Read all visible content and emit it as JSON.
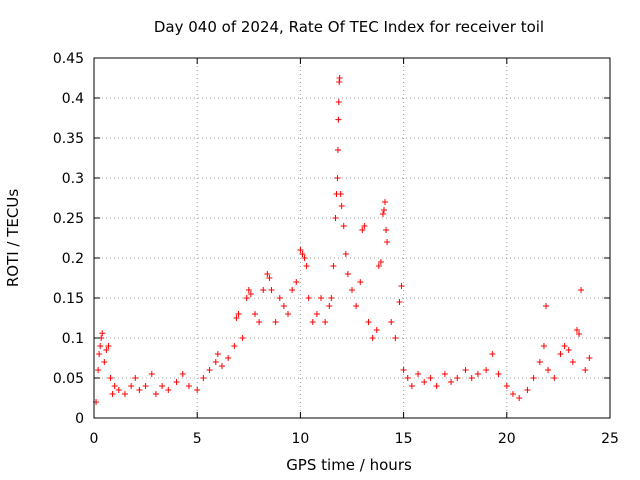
{
  "chart_data": {
    "type": "scatter",
    "title": "Day 040 of 2024, Rate Of TEC Index for receiver toil",
    "xlabel": "GPS time / hours",
    "ylabel": "ROTI / TECUs",
    "xlim": [
      0,
      25
    ],
    "ylim": [
      0,
      0.45
    ],
    "grid": true,
    "x_ticks": [
      0,
      5,
      10,
      15,
      20,
      25
    ],
    "x_tick_labels": [
      "0",
      "5",
      "10",
      "15",
      "20",
      "25"
    ],
    "y_ticks": [
      0,
      0.05,
      0.1,
      0.15,
      0.2,
      0.25,
      0.3,
      0.35,
      0.4,
      0.45
    ],
    "y_tick_labels": [
      "0",
      "0.05",
      "0.1",
      "0.15",
      "0.2",
      "0.25",
      "0.3",
      "0.35",
      "0.4",
      "0.45"
    ],
    "marker": "plus",
    "color": "#ff0000",
    "series": [
      {
        "name": "ROTI",
        "points": [
          [
            0.1,
            0.02
          ],
          [
            0.2,
            0.06
          ],
          [
            0.25,
            0.08
          ],
          [
            0.3,
            0.09
          ],
          [
            0.35,
            0.1
          ],
          [
            0.4,
            0.106
          ],
          [
            0.5,
            0.07
          ],
          [
            0.6,
            0.085
          ],
          [
            0.7,
            0.09
          ],
          [
            0.8,
            0.05
          ],
          [
            0.9,
            0.03
          ],
          [
            1.0,
            0.04
          ],
          [
            1.2,
            0.035
          ],
          [
            1.5,
            0.03
          ],
          [
            1.8,
            0.04
          ],
          [
            2.0,
            0.05
          ],
          [
            2.2,
            0.035
          ],
          [
            2.5,
            0.04
          ],
          [
            2.8,
            0.055
          ],
          [
            3.0,
            0.03
          ],
          [
            3.3,
            0.04
          ],
          [
            3.6,
            0.035
          ],
          [
            4.0,
            0.045
          ],
          [
            4.3,
            0.055
          ],
          [
            4.6,
            0.04
          ],
          [
            5.0,
            0.035
          ],
          [
            5.3,
            0.05
          ],
          [
            5.6,
            0.06
          ],
          [
            5.9,
            0.07
          ],
          [
            6.0,
            0.08
          ],
          [
            6.2,
            0.065
          ],
          [
            6.5,
            0.075
          ],
          [
            6.8,
            0.09
          ],
          [
            6.9,
            0.125
          ],
          [
            7.0,
            0.13
          ],
          [
            7.2,
            0.1
          ],
          [
            7.4,
            0.15
          ],
          [
            7.5,
            0.16
          ],
          [
            7.6,
            0.155
          ],
          [
            7.8,
            0.13
          ],
          [
            8.0,
            0.12
          ],
          [
            8.2,
            0.16
          ],
          [
            8.4,
            0.18
          ],
          [
            8.5,
            0.175
          ],
          [
            8.6,
            0.16
          ],
          [
            8.8,
            0.12
          ],
          [
            9.0,
            0.15
          ],
          [
            9.2,
            0.14
          ],
          [
            9.4,
            0.13
          ],
          [
            9.6,
            0.16
          ],
          [
            9.8,
            0.17
          ],
          [
            10.0,
            0.21
          ],
          [
            10.1,
            0.205
          ],
          [
            10.2,
            0.2
          ],
          [
            10.3,
            0.19
          ],
          [
            10.4,
            0.15
          ],
          [
            10.6,
            0.12
          ],
          [
            10.8,
            0.13
          ],
          [
            11.0,
            0.15
          ],
          [
            11.2,
            0.12
          ],
          [
            11.4,
            0.14
          ],
          [
            11.5,
            0.15
          ],
          [
            11.6,
            0.19
          ],
          [
            11.7,
            0.25
          ],
          [
            11.75,
            0.28
          ],
          [
            11.8,
            0.3
          ],
          [
            11.82,
            0.335
          ],
          [
            11.84,
            0.373
          ],
          [
            11.86,
            0.395
          ],
          [
            11.88,
            0.42
          ],
          [
            11.9,
            0.425
          ],
          [
            11.95,
            0.28
          ],
          [
            12.0,
            0.265
          ],
          [
            12.1,
            0.24
          ],
          [
            12.2,
            0.205
          ],
          [
            12.3,
            0.18
          ],
          [
            12.5,
            0.16
          ],
          [
            12.7,
            0.14
          ],
          [
            12.9,
            0.17
          ],
          [
            13.0,
            0.235
          ],
          [
            13.1,
            0.24
          ],
          [
            13.3,
            0.12
          ],
          [
            13.5,
            0.1
          ],
          [
            13.7,
            0.11
          ],
          [
            13.8,
            0.19
          ],
          [
            13.9,
            0.195
          ],
          [
            14.0,
            0.255
          ],
          [
            14.05,
            0.26
          ],
          [
            14.1,
            0.27
          ],
          [
            14.15,
            0.235
          ],
          [
            14.2,
            0.22
          ],
          [
            14.4,
            0.12
          ],
          [
            14.6,
            0.1
          ],
          [
            14.8,
            0.145
          ],
          [
            14.9,
            0.165
          ],
          [
            15.0,
            0.06
          ],
          [
            15.2,
            0.05
          ],
          [
            15.4,
            0.04
          ],
          [
            15.7,
            0.055
          ],
          [
            16.0,
            0.045
          ],
          [
            16.3,
            0.05
          ],
          [
            16.6,
            0.04
          ],
          [
            17.0,
            0.055
          ],
          [
            17.3,
            0.045
          ],
          [
            17.6,
            0.05
          ],
          [
            18.0,
            0.06
          ],
          [
            18.3,
            0.05
          ],
          [
            18.6,
            0.055
          ],
          [
            19.0,
            0.06
          ],
          [
            19.3,
            0.08
          ],
          [
            19.6,
            0.055
          ],
          [
            20.0,
            0.04
          ],
          [
            20.3,
            0.03
          ],
          [
            20.6,
            0.025
          ],
          [
            21.0,
            0.035
          ],
          [
            21.3,
            0.05
          ],
          [
            21.6,
            0.07
          ],
          [
            21.8,
            0.09
          ],
          [
            21.9,
            0.14
          ],
          [
            22.0,
            0.06
          ],
          [
            22.3,
            0.05
          ],
          [
            22.6,
            0.08
          ],
          [
            22.8,
            0.09
          ],
          [
            23.0,
            0.085
          ],
          [
            23.2,
            0.07
          ],
          [
            23.4,
            0.11
          ],
          [
            23.5,
            0.105
          ],
          [
            23.6,
            0.16
          ],
          [
            23.8,
            0.06
          ],
          [
            24.0,
            0.075
          ]
        ]
      }
    ]
  }
}
